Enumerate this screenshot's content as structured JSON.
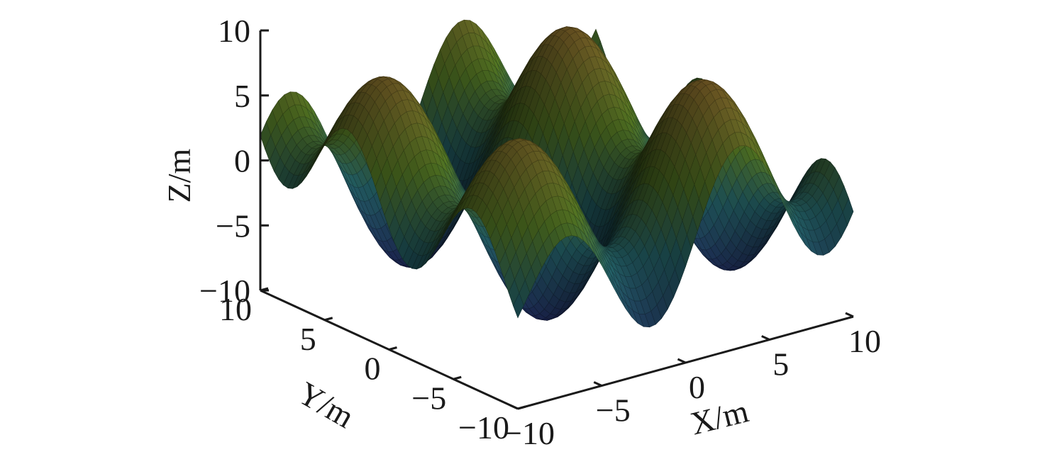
{
  "chart_data": {
    "type": "surface",
    "title": "",
    "colormap": "dark-3d-surface",
    "xlabel": "X/m",
    "ylabel": "Y/m",
    "zlabel": "Z/m",
    "xlim": [
      -10,
      10
    ],
    "ylim": [
      -10,
      10
    ],
    "zlim": [
      -10,
      10
    ],
    "x_ticks": [
      -10,
      -5,
      0,
      5,
      10
    ],
    "y_ticks": [
      -10,
      -5,
      0,
      5,
      10
    ],
    "z_ticks": [
      -10,
      -5,
      0,
      5,
      10
    ],
    "x_tick_labels": [
      "−10",
      "−5",
      "0",
      "5",
      "10"
    ],
    "y_tick_labels": [
      "−10",
      "−5",
      "0",
      "5",
      "10"
    ],
    "z_tick_labels": [
      "−10",
      "−5",
      "0",
      "5",
      "10"
    ],
    "surface_function": "z = 7.5*sin(0.35*(x + y)) * cos(0.30*(x - y)) + 2*sin(0.5*x)",
    "grid_resolution": 56,
    "colors": {
      "low": "#2a2f7a",
      "mid": "#2f7f86",
      "high_green": "#6c9a2e",
      "high": "#b88a3a",
      "shadow": "#0d0d0d",
      "axis": "#1a1a1a",
      "background": "#ffffff"
    }
  }
}
